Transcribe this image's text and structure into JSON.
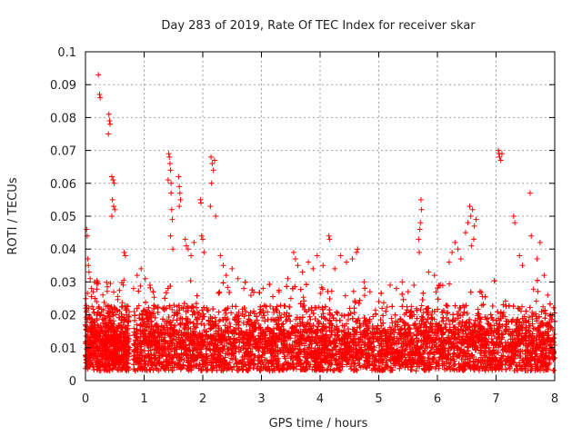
{
  "chart_data": {
    "type": "scatter",
    "title": "Day 283 of 2019, Rate Of TEC Index for receiver skar",
    "xlabel": "GPS time / hours",
    "ylabel": "ROTI / TECUs",
    "xlim": [
      0,
      8
    ],
    "ylim": [
      0,
      0.1
    ],
    "x_ticks": [
      "0",
      "1",
      "2",
      "3",
      "4",
      "5",
      "6",
      "7",
      "8"
    ],
    "y_ticks": [
      "0",
      "0.01",
      "0.02",
      "0.03",
      "0.04",
      "0.05",
      "0.06",
      "0.07",
      "0.08",
      "0.09",
      "0.1"
    ],
    "x_tick_values": [
      0,
      1,
      2,
      3,
      4,
      5,
      6,
      7,
      8
    ],
    "y_tick_values": [
      0,
      0.01,
      0.02,
      0.03,
      0.04,
      0.05,
      0.06,
      0.07,
      0.08,
      0.09,
      0.1
    ],
    "grid": true,
    "marker": "+",
    "series": [
      {
        "name": "ROTI",
        "color": "#ff0000",
        "points": [
          [
            0.02,
            0.046
          ],
          [
            0.03,
            0.044
          ],
          [
            0.04,
            0.037
          ],
          [
            0.05,
            0.035
          ],
          [
            0.06,
            0.033
          ],
          [
            0.08,
            0.031
          ],
          [
            0.1,
            0.028
          ],
          [
            0.13,
            0.027
          ],
          [
            0.16,
            0.025
          ],
          [
            0.19,
            0.024
          ],
          [
            0.22,
            0.022
          ],
          [
            0.22,
            0.093
          ],
          [
            0.24,
            0.087
          ],
          [
            0.25,
            0.086
          ],
          [
            0.4,
            0.081
          ],
          [
            0.41,
            0.079
          ],
          [
            0.42,
            0.078
          ],
          [
            0.39,
            0.075
          ],
          [
            0.45,
            0.062
          ],
          [
            0.47,
            0.061
          ],
          [
            0.49,
            0.06
          ],
          [
            0.46,
            0.055
          ],
          [
            0.48,
            0.053
          ],
          [
            0.5,
            0.052
          ],
          [
            0.45,
            0.05
          ],
          [
            0.66,
            0.039
          ],
          [
            0.68,
            0.038
          ],
          [
            0.82,
            0.028
          ],
          [
            0.88,
            0.032
          ],
          [
            0.95,
            0.034
          ],
          [
            1.02,
            0.031
          ],
          [
            1.1,
            0.029
          ],
          [
            1.42,
            0.069
          ],
          [
            1.43,
            0.068
          ],
          [
            1.44,
            0.066
          ],
          [
            1.45,
            0.064
          ],
          [
            1.41,
            0.061
          ],
          [
            1.46,
            0.06
          ],
          [
            1.46,
            0.057
          ],
          [
            1.47,
            0.052
          ],
          [
            1.48,
            0.049
          ],
          [
            1.45,
            0.044
          ],
          [
            1.49,
            0.04
          ],
          [
            1.59,
            0.062
          ],
          [
            1.6,
            0.059
          ],
          [
            1.61,
            0.057
          ],
          [
            1.62,
            0.055
          ],
          [
            1.6,
            0.053
          ],
          [
            1.7,
            0.043
          ],
          [
            1.72,
            0.041
          ],
          [
            1.75,
            0.04
          ],
          [
            1.8,
            0.038
          ],
          [
            1.85,
            0.042
          ],
          [
            1.96,
            0.055
          ],
          [
            1.97,
            0.054
          ],
          [
            1.98,
            0.044
          ],
          [
            2.0,
            0.043
          ],
          [
            2.02,
            0.039
          ],
          [
            2.14,
            0.068
          ],
          [
            2.16,
            0.066
          ],
          [
            2.18,
            0.064
          ],
          [
            2.2,
            0.067
          ],
          [
            2.15,
            0.06
          ],
          [
            2.13,
            0.053
          ],
          [
            2.22,
            0.05
          ],
          [
            2.3,
            0.038
          ],
          [
            2.35,
            0.035
          ],
          [
            2.4,
            0.032
          ],
          [
            2.5,
            0.034
          ],
          [
            2.6,
            0.031
          ],
          [
            2.7,
            0.028
          ],
          [
            3.3,
            0.027
          ],
          [
            3.45,
            0.031
          ],
          [
            3.55,
            0.039
          ],
          [
            3.58,
            0.037
          ],
          [
            3.62,
            0.035
          ],
          [
            3.7,
            0.033
          ],
          [
            3.8,
            0.036
          ],
          [
            3.88,
            0.034
          ],
          [
            3.95,
            0.038
          ],
          [
            4.05,
            0.035
          ],
          [
            4.15,
            0.044
          ],
          [
            4.16,
            0.043
          ],
          [
            4.25,
            0.034
          ],
          [
            4.35,
            0.038
          ],
          [
            4.45,
            0.036
          ],
          [
            4.55,
            0.037
          ],
          [
            4.62,
            0.039
          ],
          [
            4.64,
            0.04
          ],
          [
            4.75,
            0.03
          ],
          [
            4.85,
            0.027
          ],
          [
            5.0,
            0.024
          ],
          [
            5.3,
            0.028
          ],
          [
            5.4,
            0.03
          ],
          [
            5.5,
            0.027
          ],
          [
            5.6,
            0.029
          ],
          [
            5.72,
            0.055
          ],
          [
            5.73,
            0.052
          ],
          [
            5.71,
            0.048
          ],
          [
            5.7,
            0.046
          ],
          [
            5.68,
            0.043
          ],
          [
            5.69,
            0.039
          ],
          [
            5.85,
            0.033
          ],
          [
            5.95,
            0.032
          ],
          [
            6.05,
            0.029
          ],
          [
            6.2,
            0.036
          ],
          [
            6.25,
            0.039
          ],
          [
            6.3,
            0.042
          ],
          [
            6.35,
            0.04
          ],
          [
            6.4,
            0.037
          ],
          [
            6.48,
            0.045
          ],
          [
            6.52,
            0.048
          ],
          [
            6.55,
            0.053
          ],
          [
            6.57,
            0.05
          ],
          [
            6.6,
            0.052
          ],
          [
            6.63,
            0.047
          ],
          [
            6.66,
            0.049
          ],
          [
            6.62,
            0.043
          ],
          [
            6.58,
            0.041
          ],
          [
            7.04,
            0.07
          ],
          [
            7.05,
            0.069
          ],
          [
            7.06,
            0.068
          ],
          [
            7.08,
            0.067
          ],
          [
            7.1,
            0.069
          ],
          [
            7.3,
            0.05
          ],
          [
            7.32,
            0.048
          ],
          [
            7.4,
            0.038
          ],
          [
            7.45,
            0.035
          ],
          [
            7.58,
            0.057
          ],
          [
            7.6,
            0.044
          ],
          [
            7.7,
            0.037
          ],
          [
            7.75,
            0.042
          ],
          [
            7.82,
            0.032
          ],
          [
            7.88,
            0.026
          ]
        ],
        "background_band": {
          "x_segments": [
            [
              0.0,
              0.75
            ],
            [
              0.82,
              8.0
            ]
          ],
          "y_min": 0.003,
          "y_max": 0.02,
          "typical": 0.011,
          "elevated_spread": 0.028,
          "points_per_hour": 1100
        }
      }
    ]
  }
}
